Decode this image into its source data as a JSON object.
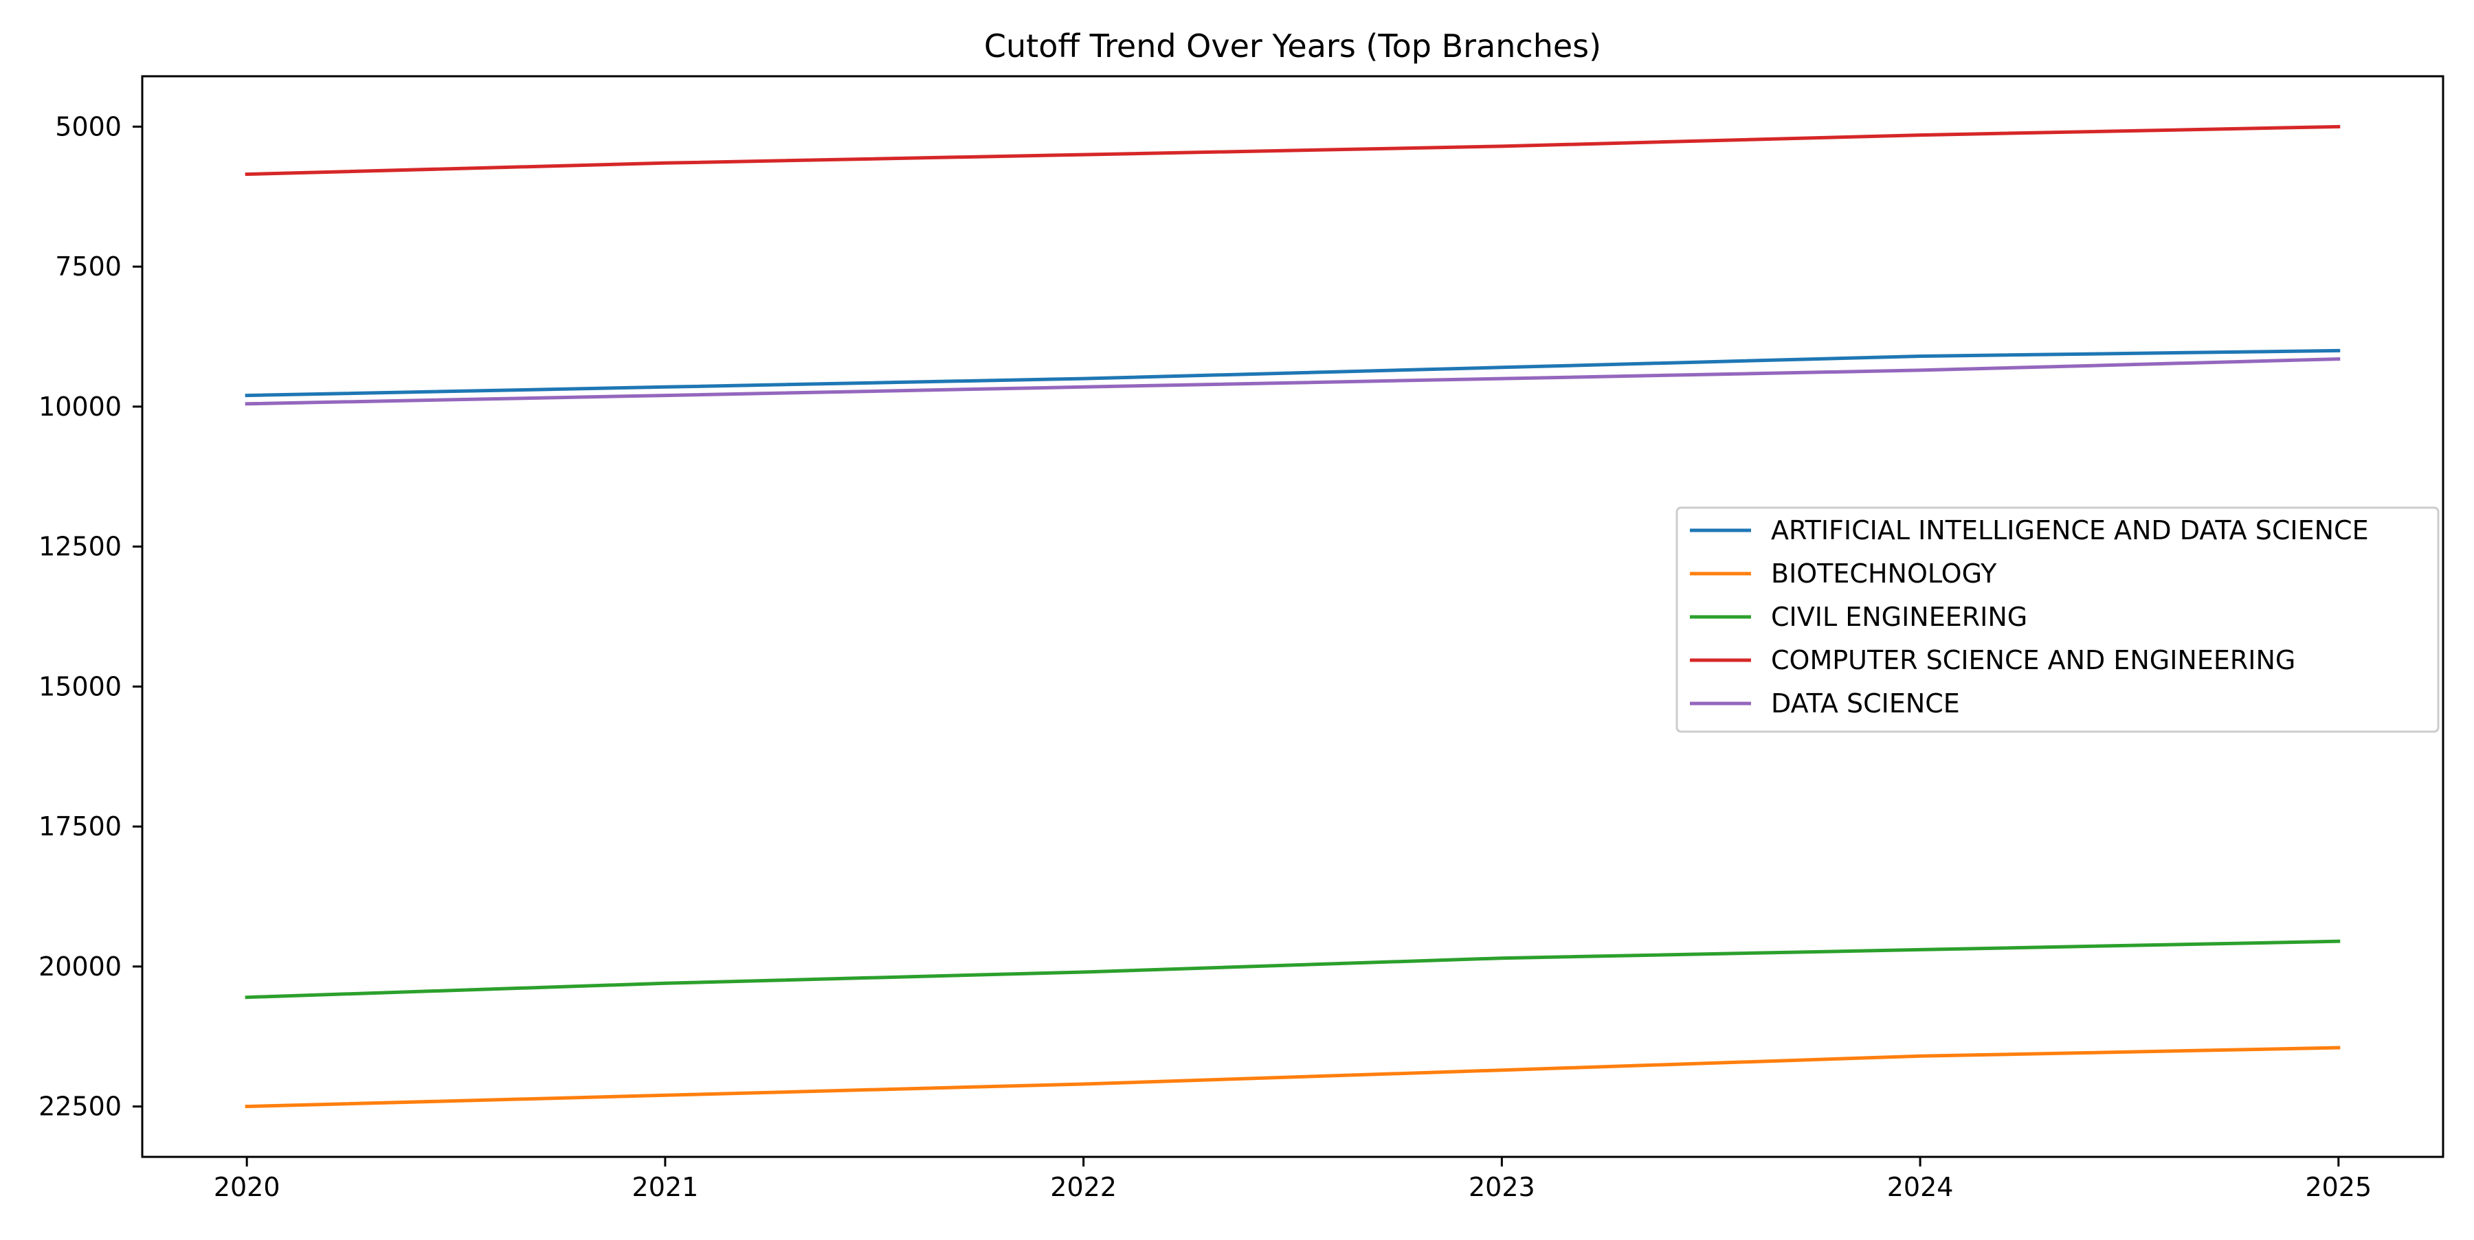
{
  "chart_data": {
    "type": "line",
    "title": "Cutoff Trend Over Years (Top Branches)",
    "xlabel": "",
    "ylabel": "",
    "x": [
      2020,
      2021,
      2022,
      2023,
      2024,
      2025
    ],
    "x_ticks": [
      "2020",
      "2021",
      "2022",
      "2023",
      "2024",
      "2025"
    ],
    "xlim": [
      2019.75,
      2025.25
    ],
    "y_ticks": [
      5000,
      7500,
      10000,
      12500,
      15000,
      17500,
      20000,
      22500
    ],
    "ylim": [
      23400,
      4100
    ],
    "y_inverted": true,
    "grid": false,
    "legend_position": "center-right",
    "series": [
      {
        "name": "ARTIFICIAL INTELLIGENCE AND DATA SCIENCE",
        "color": "#1f77b4",
        "values": [
          9800,
          9650,
          9500,
          9300,
          9100,
          9000
        ]
      },
      {
        "name": "BIOTECHNOLOGY",
        "color": "#ff7f0e",
        "values": [
          22500,
          22300,
          22100,
          21850,
          21600,
          21450
        ]
      },
      {
        "name": "CIVIL ENGINEERING",
        "color": "#2ca02c",
        "values": [
          20550,
          20300,
          20100,
          19850,
          19700,
          19550
        ]
      },
      {
        "name": "COMPUTER SCIENCE AND ENGINEERING",
        "color": "#d62728",
        "values": [
          5850,
          5650,
          5500,
          5350,
          5150,
          5000
        ]
      },
      {
        "name": "DATA SCIENCE",
        "color": "#9467bd",
        "values": [
          9950,
          9800,
          9650,
          9500,
          9350,
          9150
        ]
      }
    ]
  }
}
